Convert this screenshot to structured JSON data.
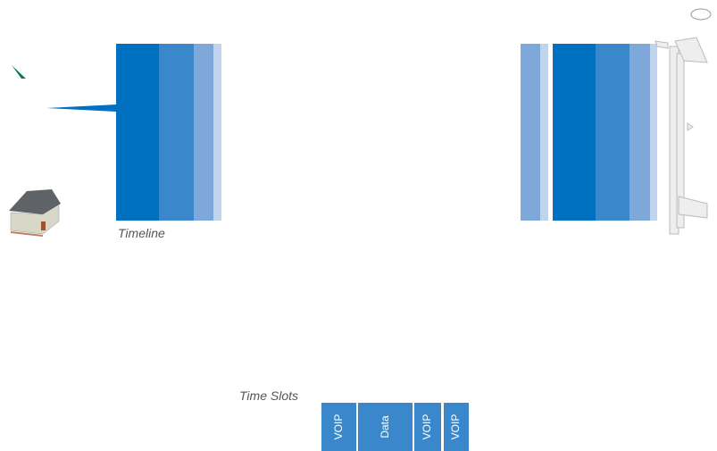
{
  "labels": {
    "timeline": "Timeline",
    "time_slots": "Time Slots"
  },
  "slots": [
    {
      "label": "VOIP"
    },
    {
      "label": "Data"
    },
    {
      "label": "VOIP"
    },
    {
      "label": "VOIP"
    }
  ]
}
